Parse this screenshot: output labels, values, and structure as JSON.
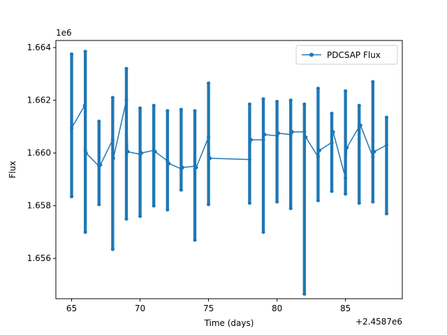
{
  "chart_data": {
    "type": "line",
    "xlabel": "Time (days)",
    "ylabel": "Flux",
    "x_offset_label": "+2.4587e6",
    "y_multiplier_label": "1e6",
    "xlim": [
      63.85,
      89.15
    ],
    "ylim": [
      1.65447,
      1.66427
    ],
    "x_ticks": [
      65,
      70,
      75,
      80,
      85
    ],
    "x_tick_labels": [
      "65",
      "70",
      "75",
      "80",
      "85"
    ],
    "y_ticks": [
      1.656,
      1.658,
      1.66,
      1.662,
      1.664
    ],
    "y_tick_labels": [
      "1.656",
      "1.658",
      "1.660",
      "1.662",
      "1.664"
    ],
    "grid": false,
    "legend_position": "upper right",
    "series": [
      {
        "name": "PDCSAP Flux",
        "color": "#1f77b4",
        "marker": "circle",
        "x": [
          65.0,
          65.95,
          66.0,
          66.05,
          67.0,
          67.1,
          68.0,
          68.05,
          69.0,
          69.1,
          70.0,
          70.1,
          71.0,
          71.1,
          72.0,
          72.1,
          73.0,
          73.1,
          74.0,
          74.1,
          75.0,
          75.1,
          78.0,
          78.1,
          79.0,
          79.1,
          80.0,
          80.1,
          81.0,
          81.1,
          82.0,
          82.1,
          83.0,
          83.1,
          84.0,
          84.1,
          85.0,
          85.1,
          86.0,
          86.1,
          87.0,
          87.1,
          88.0
        ],
        "y": [
          1.66095,
          1.6618,
          1.6601,
          1.66,
          1.6595,
          1.65955,
          1.6605,
          1.6598,
          1.662,
          1.66005,
          1.65995,
          1.66,
          1.6601,
          1.66005,
          1.6597,
          1.6596,
          1.6594,
          1.65945,
          1.6595,
          1.65945,
          1.6606,
          1.6598,
          1.65975,
          1.6605,
          1.6605,
          1.6607,
          1.66065,
          1.66075,
          1.6607,
          1.6608,
          1.6608,
          1.6606,
          1.65985,
          1.6601,
          1.6604,
          1.6608,
          1.65905,
          1.6602,
          1.661,
          1.66105,
          1.65985,
          1.66005,
          1.6603
        ],
        "range_columns": [
          {
            "x": 65.0,
            "min": 1.65835,
            "max": 1.66375
          },
          {
            "x": 66.0,
            "min": 1.657,
            "max": 1.66385
          },
          {
            "x": 67.0,
            "min": 1.65805,
            "max": 1.6612
          },
          {
            "x": 68.0,
            "min": 1.65635,
            "max": 1.6621
          },
          {
            "x": 69.0,
            "min": 1.6575,
            "max": 1.6632
          },
          {
            "x": 70.0,
            "min": 1.6576,
            "max": 1.6617
          },
          {
            "x": 71.0,
            "min": 1.658,
            "max": 1.6618
          },
          {
            "x": 72.0,
            "min": 1.65785,
            "max": 1.6616
          },
          {
            "x": 73.0,
            "min": 1.6586,
            "max": 1.66165
          },
          {
            "x": 74.0,
            "min": 1.6567,
            "max": 1.6616
          },
          {
            "x": 75.0,
            "min": 1.65805,
            "max": 1.66265
          },
          {
            "x": 78.0,
            "min": 1.6581,
            "max": 1.66185
          },
          {
            "x": 79.0,
            "min": 1.657,
            "max": 1.66205
          },
          {
            "x": 80.0,
            "min": 1.65815,
            "max": 1.66195
          },
          {
            "x": 81.0,
            "min": 1.6579,
            "max": 1.662
          },
          {
            "x": 82.0,
            "min": 1.65465,
            "max": 1.66185
          },
          {
            "x": 83.0,
            "min": 1.6582,
            "max": 1.66245
          },
          {
            "x": 84.0,
            "min": 1.65855,
            "max": 1.6615
          },
          {
            "x": 85.0,
            "min": 1.65845,
            "max": 1.66235
          },
          {
            "x": 86.0,
            "min": 1.6581,
            "max": 1.6618
          },
          {
            "x": 87.0,
            "min": 1.65815,
            "max": 1.6627
          },
          {
            "x": 88.0,
            "min": 1.6577,
            "max": 1.66135
          }
        ],
        "column_width_days": 0.22
      }
    ]
  }
}
